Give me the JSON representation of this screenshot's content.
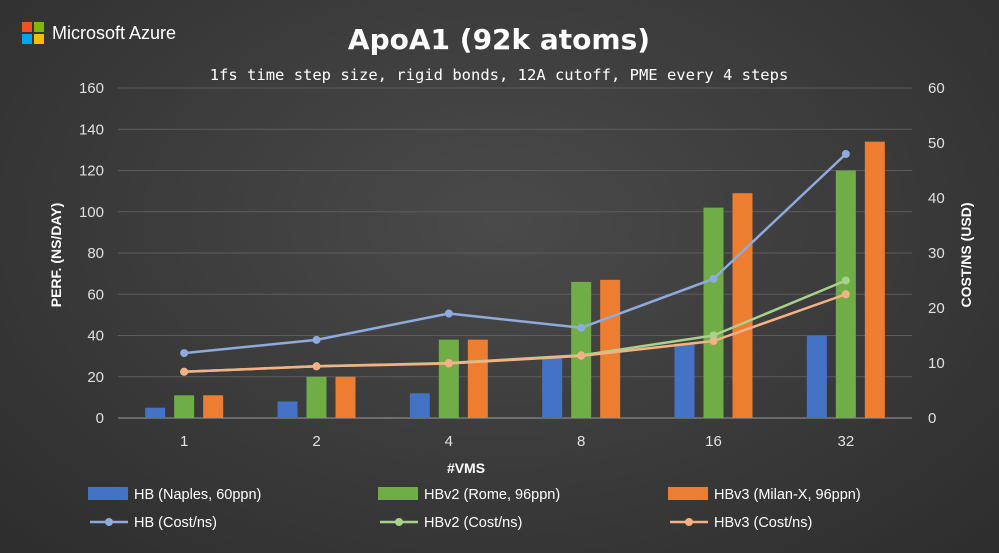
{
  "logo": {
    "text": "Microsoft Azure",
    "colors": [
      "#f25022",
      "#7fba00",
      "#00a4ef",
      "#ffb900"
    ]
  },
  "chart_data": {
    "type": "bar",
    "title": "ApoA1 (92k atoms)",
    "subtitle": "1fs time step size, rigid bonds, 12A cutoff, PME every 4 steps",
    "xlabel": "#VMS",
    "ylabel": "PERF. (NS/DAY)",
    "y2label": "COST/NS (USD)",
    "categories": [
      "1",
      "2",
      "4",
      "8",
      "16",
      "32"
    ],
    "ylim": [
      0,
      160
    ],
    "y2lim": [
      0,
      60
    ],
    "yticks": [
      0,
      20,
      40,
      60,
      80,
      100,
      120,
      140,
      160
    ],
    "y2ticks": [
      0,
      10,
      20,
      30,
      40,
      50,
      60
    ],
    "grid": true,
    "legend_position": "bottom",
    "series": [
      {
        "name": "HB (Naples, 60ppn)",
        "kind": "bar",
        "axis": "left",
        "color": "#4472c4",
        "values": [
          5,
          8,
          12,
          29,
          36,
          40
        ]
      },
      {
        "name": "HBv2 (Rome, 96ppn)",
        "kind": "bar",
        "axis": "left",
        "color": "#70ad47",
        "values": [
          11,
          20,
          38,
          66,
          102,
          120
        ]
      },
      {
        "name": "HBv3 (Milan-X, 96ppn)",
        "kind": "bar",
        "axis": "left",
        "color": "#ed7d31",
        "values": [
          11,
          20,
          38,
          67,
          109,
          134
        ]
      },
      {
        "name": "HB (Cost/ns)",
        "kind": "line",
        "axis": "right",
        "color": "#8faadc",
        "values": [
          11.8,
          14.2,
          19.0,
          16.4,
          25.3,
          48.0
        ]
      },
      {
        "name": "HBv2 (Cost/ns)",
        "kind": "line",
        "axis": "right",
        "color": "#a9d18e",
        "values": [
          8.4,
          9.4,
          10.0,
          11.4,
          15.0,
          25.0
        ]
      },
      {
        "name": "HBv3 (Cost/ns)",
        "kind": "line",
        "axis": "right",
        "color": "#f4b183",
        "values": [
          8.4,
          9.4,
          9.9,
          11.3,
          14.0,
          22.5
        ]
      }
    ]
  }
}
